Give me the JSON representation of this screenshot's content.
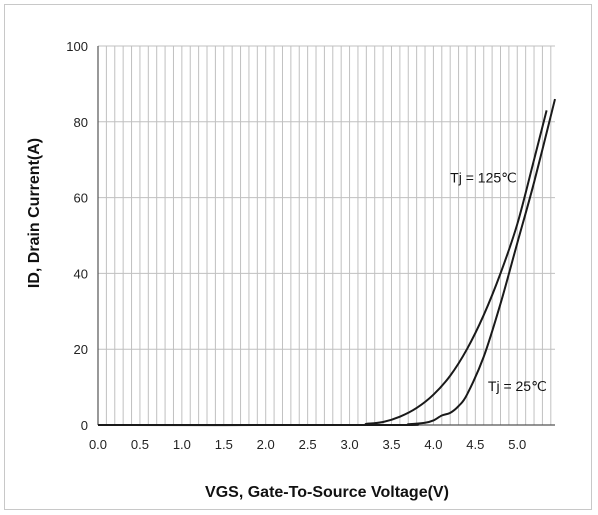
{
  "chart_data": {
    "type": "line",
    "xlabel": "VGS,  Gate-To-Source Voltage(V)",
    "ylabel": "ID, Drain Current(A)",
    "xlim": [
      0.0,
      5.45
    ],
    "ylim": [
      0,
      100
    ],
    "x_ticks": [
      "0.0",
      "0.5",
      "1.0",
      "1.5",
      "2.0",
      "2.5",
      "3.0",
      "3.5",
      "4.0",
      "4.5",
      "5.0"
    ],
    "y_ticks": [
      "0",
      "20",
      "40",
      "60",
      "80",
      "100"
    ],
    "grid": true,
    "series": [
      {
        "name": "Tj = 125℃",
        "x": [
          0.0,
          3.0,
          3.2,
          3.4,
          3.6,
          3.8,
          4.0,
          4.2,
          4.4,
          4.6,
          4.8,
          5.0,
          5.2,
          5.35
        ],
        "y": [
          0,
          0,
          0.3,
          0.8,
          2.2,
          4.5,
          8,
          13,
          20,
          29,
          40,
          53,
          70,
          83
        ]
      },
      {
        "name": "Tj = 25℃",
        "x": [
          0.0,
          3.5,
          3.7,
          3.9,
          4.0,
          4.1,
          4.2,
          4.3,
          4.4,
          4.6,
          4.8,
          5.0,
          5.2,
          5.45
        ],
        "y": [
          0,
          0,
          0.2,
          0.6,
          1.2,
          2.5,
          3.2,
          5,
          8,
          18,
          32,
          48,
          64,
          86
        ]
      }
    ],
    "annotations": [
      {
        "text": "Tj = 125℃",
        "x": 4.2,
        "y": 64
      },
      {
        "text": "Tj = 25℃",
        "x": 4.65,
        "y": 9
      }
    ],
    "colors": {
      "line": "#1a1a1a",
      "grid": "#c0c0c0",
      "axis": "#555555"
    }
  }
}
